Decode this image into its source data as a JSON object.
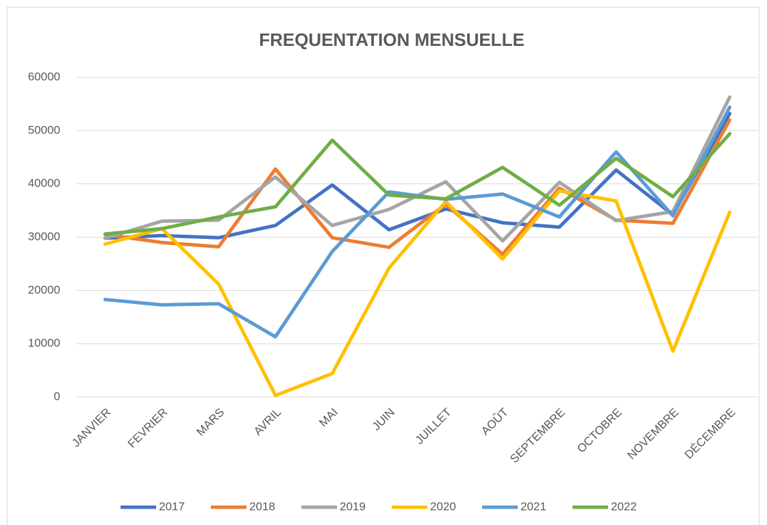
{
  "chart_data": {
    "type": "line",
    "title": "FREQUENTATION MENSUELLE",
    "categories": [
      "JANVIER",
      "FEVRIER",
      "MARS",
      "AVRIL",
      "MAI",
      "JUIN",
      "JUILLET",
      "AOÛT",
      "SEPTEMBRE",
      "OCTOBRE",
      "NOVEMBRE",
      "DÉCEMBRE"
    ],
    "series": [
      {
        "name": "2017",
        "color": "#4472c4",
        "values": [
          29800,
          30300,
          29900,
          32200,
          39800,
          31400,
          35300,
          32700,
          31900,
          42600,
          34200,
          53200
        ]
      },
      {
        "name": "2018",
        "color": "#ed7d31",
        "values": [
          30500,
          29000,
          28200,
          42800,
          29900,
          28100,
          36200,
          26800,
          39200,
          33200,
          32600,
          52000
        ]
      },
      {
        "name": "2019",
        "color": "#a5a5a5",
        "values": [
          29800,
          33000,
          33200,
          41300,
          32200,
          35200,
          40400,
          29300,
          40300,
          33100,
          34800,
          56300
        ]
      },
      {
        "name": "2020",
        "color": "#ffc000",
        "values": [
          28700,
          31600,
          21200,
          300,
          4400,
          24200,
          36700,
          25900,
          38700,
          36800,
          8600,
          34700
        ]
      },
      {
        "name": "2021",
        "color": "#5b9bd5",
        "values": [
          18300,
          17300,
          17500,
          11300,
          27300,
          38500,
          37100,
          38100,
          33800,
          46000,
          34000,
          54400
        ]
      },
      {
        "name": "2022",
        "color": "#70ad47",
        "values": [
          30600,
          31600,
          33800,
          35700,
          48200,
          37900,
          37200,
          43100,
          36000,
          44800,
          37600,
          49400
        ]
      }
    ],
    "ylim": [
      0,
      60000
    ],
    "yticks": [
      0,
      10000,
      20000,
      30000,
      40000,
      50000,
      60000
    ],
    "grid": true,
    "legend": "bottom"
  }
}
